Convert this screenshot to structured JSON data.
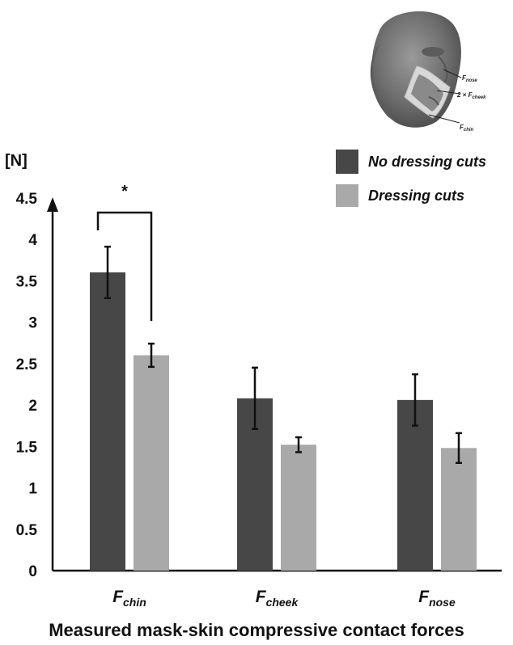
{
  "chart_data": {
    "type": "bar",
    "ylabel": "[N]",
    "xlabel": "Measured mask-skin compressive contact forces",
    "ylim": [
      0,
      4.5
    ],
    "yticks": [
      "0",
      "0.5",
      "1",
      "1.5",
      "2",
      "2.5",
      "3",
      "3.5",
      "4",
      "4.5"
    ],
    "categories": [
      {
        "main": "F",
        "sub": "chin"
      },
      {
        "main": "F",
        "sub": "cheek"
      },
      {
        "main": "F",
        "sub": "nose"
      }
    ],
    "series": [
      {
        "name": "No dressing cuts",
        "color": "#474747",
        "values": [
          3.6,
          2.08,
          2.06
        ],
        "errors": [
          0.31,
          0.37,
          0.31
        ]
      },
      {
        "name": "Dressing cuts",
        "color": "#a9a9a9",
        "values": [
          2.6,
          1.52,
          1.48
        ],
        "errors": [
          0.14,
          0.09,
          0.18
        ]
      }
    ],
    "legend_position": "top-right",
    "significance": {
      "category": 0,
      "marker": "*"
    },
    "grid": false
  },
  "inset": {
    "labels": [
      {
        "main": "F",
        "sub": "nose",
        "prefix": ""
      },
      {
        "main": "F",
        "sub": "cheek",
        "prefix": "2 × "
      },
      {
        "main": "F",
        "sub": "chin",
        "prefix": ""
      }
    ]
  }
}
